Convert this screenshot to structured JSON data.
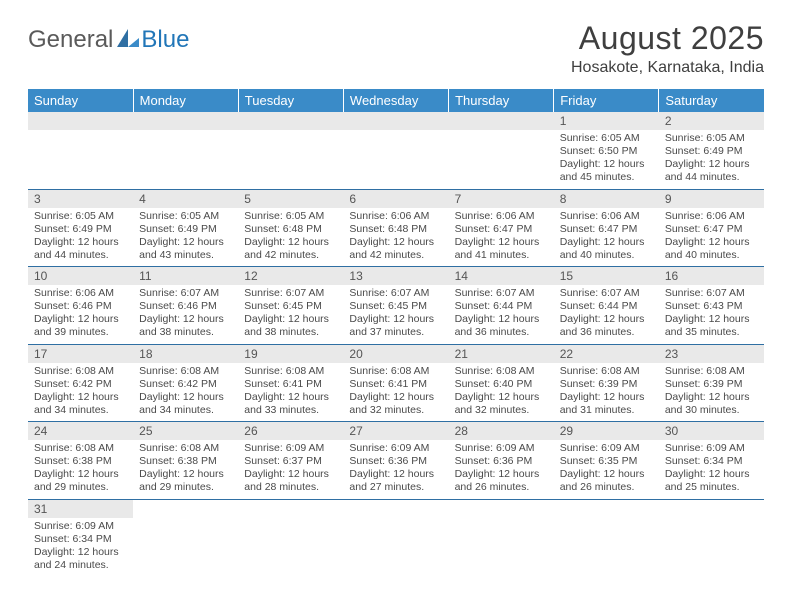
{
  "logo": {
    "text1": "General",
    "text2": "Blue"
  },
  "title": "August 2025",
  "location": "Hosakote, Karnataka, India",
  "colors": {
    "header_bg": "#3a8bc8",
    "header_text": "#ffffff",
    "daynum_bg": "#e9e9e9",
    "daynum_text": "#555555",
    "body_text": "#4a4a4a",
    "title_text": "#3f3f3f",
    "logo_gray": "#5a5a5a",
    "logo_blue": "#2176b8",
    "row_border": "#2f6fa3"
  },
  "day_headers": [
    "Sunday",
    "Monday",
    "Tuesday",
    "Wednesday",
    "Thursday",
    "Friday",
    "Saturday"
  ],
  "weeks": [
    [
      null,
      null,
      null,
      null,
      null,
      {
        "n": "1",
        "sr": "Sunrise: 6:05 AM",
        "ss": "Sunset: 6:50 PM",
        "d1": "Daylight: 12 hours",
        "d2": "and 45 minutes."
      },
      {
        "n": "2",
        "sr": "Sunrise: 6:05 AM",
        "ss": "Sunset: 6:49 PM",
        "d1": "Daylight: 12 hours",
        "d2": "and 44 minutes."
      }
    ],
    [
      {
        "n": "3",
        "sr": "Sunrise: 6:05 AM",
        "ss": "Sunset: 6:49 PM",
        "d1": "Daylight: 12 hours",
        "d2": "and 44 minutes."
      },
      {
        "n": "4",
        "sr": "Sunrise: 6:05 AM",
        "ss": "Sunset: 6:49 PM",
        "d1": "Daylight: 12 hours",
        "d2": "and 43 minutes."
      },
      {
        "n": "5",
        "sr": "Sunrise: 6:05 AM",
        "ss": "Sunset: 6:48 PM",
        "d1": "Daylight: 12 hours",
        "d2": "and 42 minutes."
      },
      {
        "n": "6",
        "sr": "Sunrise: 6:06 AM",
        "ss": "Sunset: 6:48 PM",
        "d1": "Daylight: 12 hours",
        "d2": "and 42 minutes."
      },
      {
        "n": "7",
        "sr": "Sunrise: 6:06 AM",
        "ss": "Sunset: 6:47 PM",
        "d1": "Daylight: 12 hours",
        "d2": "and 41 minutes."
      },
      {
        "n": "8",
        "sr": "Sunrise: 6:06 AM",
        "ss": "Sunset: 6:47 PM",
        "d1": "Daylight: 12 hours",
        "d2": "and 40 minutes."
      },
      {
        "n": "9",
        "sr": "Sunrise: 6:06 AM",
        "ss": "Sunset: 6:47 PM",
        "d1": "Daylight: 12 hours",
        "d2": "and 40 minutes."
      }
    ],
    [
      {
        "n": "10",
        "sr": "Sunrise: 6:06 AM",
        "ss": "Sunset: 6:46 PM",
        "d1": "Daylight: 12 hours",
        "d2": "and 39 minutes."
      },
      {
        "n": "11",
        "sr": "Sunrise: 6:07 AM",
        "ss": "Sunset: 6:46 PM",
        "d1": "Daylight: 12 hours",
        "d2": "and 38 minutes."
      },
      {
        "n": "12",
        "sr": "Sunrise: 6:07 AM",
        "ss": "Sunset: 6:45 PM",
        "d1": "Daylight: 12 hours",
        "d2": "and 38 minutes."
      },
      {
        "n": "13",
        "sr": "Sunrise: 6:07 AM",
        "ss": "Sunset: 6:45 PM",
        "d1": "Daylight: 12 hours",
        "d2": "and 37 minutes."
      },
      {
        "n": "14",
        "sr": "Sunrise: 6:07 AM",
        "ss": "Sunset: 6:44 PM",
        "d1": "Daylight: 12 hours",
        "d2": "and 36 minutes."
      },
      {
        "n": "15",
        "sr": "Sunrise: 6:07 AM",
        "ss": "Sunset: 6:44 PM",
        "d1": "Daylight: 12 hours",
        "d2": "and 36 minutes."
      },
      {
        "n": "16",
        "sr": "Sunrise: 6:07 AM",
        "ss": "Sunset: 6:43 PM",
        "d1": "Daylight: 12 hours",
        "d2": "and 35 minutes."
      }
    ],
    [
      {
        "n": "17",
        "sr": "Sunrise: 6:08 AM",
        "ss": "Sunset: 6:42 PM",
        "d1": "Daylight: 12 hours",
        "d2": "and 34 minutes."
      },
      {
        "n": "18",
        "sr": "Sunrise: 6:08 AM",
        "ss": "Sunset: 6:42 PM",
        "d1": "Daylight: 12 hours",
        "d2": "and 34 minutes."
      },
      {
        "n": "19",
        "sr": "Sunrise: 6:08 AM",
        "ss": "Sunset: 6:41 PM",
        "d1": "Daylight: 12 hours",
        "d2": "and 33 minutes."
      },
      {
        "n": "20",
        "sr": "Sunrise: 6:08 AM",
        "ss": "Sunset: 6:41 PM",
        "d1": "Daylight: 12 hours",
        "d2": "and 32 minutes."
      },
      {
        "n": "21",
        "sr": "Sunrise: 6:08 AM",
        "ss": "Sunset: 6:40 PM",
        "d1": "Daylight: 12 hours",
        "d2": "and 32 minutes."
      },
      {
        "n": "22",
        "sr": "Sunrise: 6:08 AM",
        "ss": "Sunset: 6:39 PM",
        "d1": "Daylight: 12 hours",
        "d2": "and 31 minutes."
      },
      {
        "n": "23",
        "sr": "Sunrise: 6:08 AM",
        "ss": "Sunset: 6:39 PM",
        "d1": "Daylight: 12 hours",
        "d2": "and 30 minutes."
      }
    ],
    [
      {
        "n": "24",
        "sr": "Sunrise: 6:08 AM",
        "ss": "Sunset: 6:38 PM",
        "d1": "Daylight: 12 hours",
        "d2": "and 29 minutes."
      },
      {
        "n": "25",
        "sr": "Sunrise: 6:08 AM",
        "ss": "Sunset: 6:38 PM",
        "d1": "Daylight: 12 hours",
        "d2": "and 29 minutes."
      },
      {
        "n": "26",
        "sr": "Sunrise: 6:09 AM",
        "ss": "Sunset: 6:37 PM",
        "d1": "Daylight: 12 hours",
        "d2": "and 28 minutes."
      },
      {
        "n": "27",
        "sr": "Sunrise: 6:09 AM",
        "ss": "Sunset: 6:36 PM",
        "d1": "Daylight: 12 hours",
        "d2": "and 27 minutes."
      },
      {
        "n": "28",
        "sr": "Sunrise: 6:09 AM",
        "ss": "Sunset: 6:36 PM",
        "d1": "Daylight: 12 hours",
        "d2": "and 26 minutes."
      },
      {
        "n": "29",
        "sr": "Sunrise: 6:09 AM",
        "ss": "Sunset: 6:35 PM",
        "d1": "Daylight: 12 hours",
        "d2": "and 26 minutes."
      },
      {
        "n": "30",
        "sr": "Sunrise: 6:09 AM",
        "ss": "Sunset: 6:34 PM",
        "d1": "Daylight: 12 hours",
        "d2": "and 25 minutes."
      }
    ],
    [
      {
        "n": "31",
        "sr": "Sunrise: 6:09 AM",
        "ss": "Sunset: 6:34 PM",
        "d1": "Daylight: 12 hours",
        "d2": "and 24 minutes."
      },
      null,
      null,
      null,
      null,
      null,
      null
    ]
  ]
}
